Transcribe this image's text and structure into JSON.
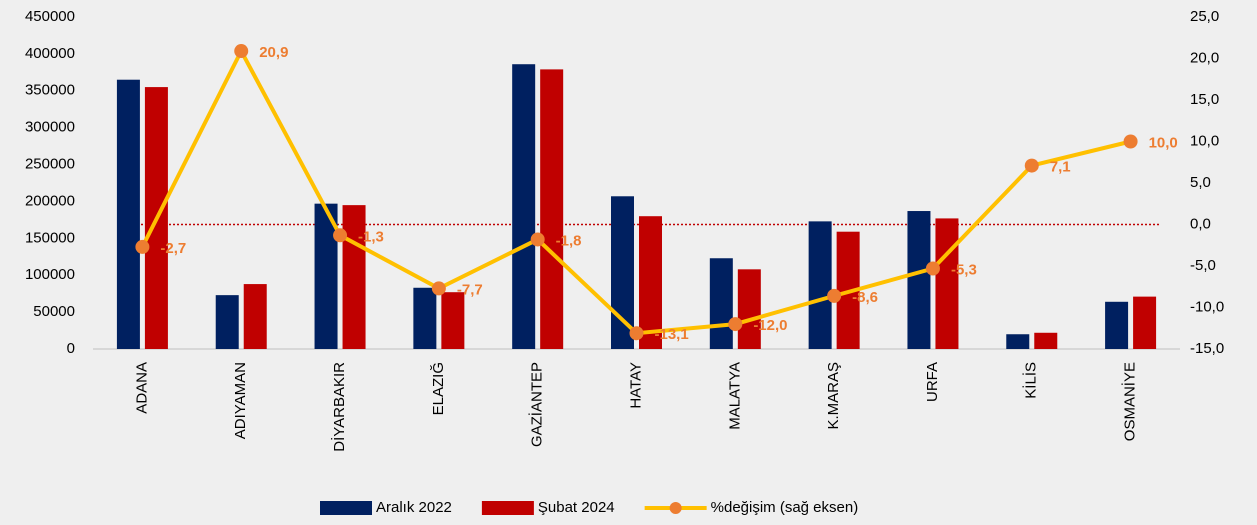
{
  "chart_data": {
    "type": "bar_line",
    "categories": [
      "ADANA",
      "ADIYAMAN",
      "DİYARBAKIR",
      "ELAZIĞ",
      "GAZİANTEP",
      "HATAY",
      "MALATYA",
      "K.MARAŞ",
      "URFA",
      "KİLİS",
      "OSMANİYE"
    ],
    "series": [
      {
        "name": "Aralık 2022",
        "type": "bar",
        "color": "#002060",
        "values": [
          365000,
          73000,
          197000,
          83000,
          386000,
          207000,
          123000,
          173000,
          187000,
          20000,
          64000
        ]
      },
      {
        "name": "Şubat 2024",
        "type": "bar",
        "color": "#c00000",
        "values": [
          355000,
          88000,
          195000,
          77000,
          379000,
          180000,
          108000,
          159000,
          177000,
          22000,
          71000
        ]
      },
      {
        "name": "%değişim (sağ eksen)",
        "type": "line",
        "axis": "y2",
        "color": "#ffc000",
        "marker_color": "#ed7d31",
        "values": [
          -2.7,
          20.9,
          -1.3,
          -7.7,
          -1.8,
          -13.1,
          -12.0,
          -8.6,
          -5.3,
          7.1,
          10.0
        ],
        "value_labels": [
          "-2,7",
          "20,9",
          "-1,3",
          "-7,7",
          "-1,8",
          "-13,1",
          "-12,0",
          "-8,6",
          "-5,3",
          "7,1",
          "10,0"
        ]
      }
    ],
    "ylim": [
      0,
      450000
    ],
    "yticks": [
      0,
      50000,
      100000,
      150000,
      200000,
      250000,
      300000,
      350000,
      400000,
      450000
    ],
    "y2lim": [
      -15,
      25
    ],
    "y2ticks": [
      {
        "value": -15,
        "label": "-15,0"
      },
      {
        "value": -10,
        "label": "-10,0"
      },
      {
        "value": -5,
        "label": "-5,0"
      },
      {
        "value": 0,
        "label": "0,0"
      },
      {
        "value": 5,
        "label": "5,0"
      },
      {
        "value": 10,
        "label": "10,0"
      },
      {
        "value": 15,
        "label": "15,0"
      },
      {
        "value": 20,
        "label": "20,0"
      },
      {
        "value": 25,
        "label": "25,0"
      }
    ],
    "reference_line": {
      "axis": "y2",
      "value": 0,
      "color": "#c00000"
    },
    "legend": "bottom"
  }
}
